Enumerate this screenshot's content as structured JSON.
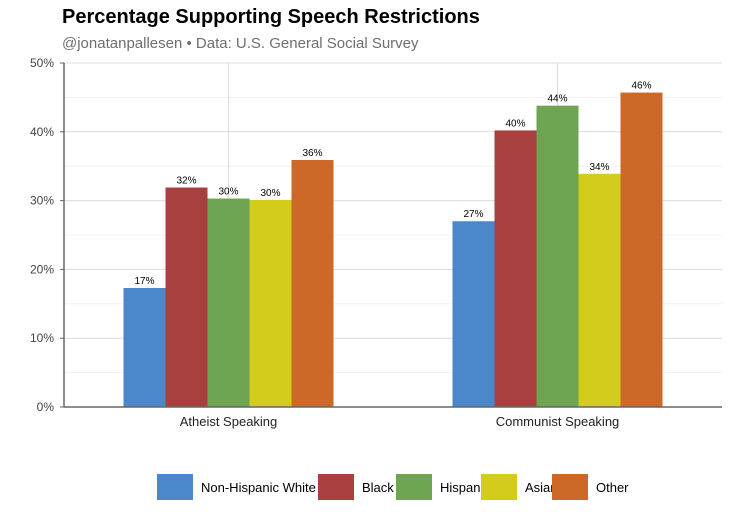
{
  "title": "Percentage Supporting Speech Restrictions",
  "subtitle": "@jonatanpallesen • Data: U.S. General Social Survey",
  "chart_data": {
    "type": "bar",
    "categories": [
      "Atheist Speaking",
      "Communist Speaking"
    ],
    "series": [
      {
        "name": "Non-Hispanic White",
        "color": "#4a88cb",
        "values": [
          17.3,
          27.0
        ],
        "labels": [
          "17%",
          "27%"
        ]
      },
      {
        "name": "Black",
        "color": "#a94040",
        "values": [
          31.9,
          40.2
        ],
        "labels": [
          "32%",
          "40%"
        ]
      },
      {
        "name": "Hispanic",
        "color": "#6ea452",
        "values": [
          30.3,
          43.8
        ],
        "labels": [
          "30%",
          "44%"
        ]
      },
      {
        "name": "Asian",
        "color": "#d3cc1a",
        "values": [
          30.1,
          33.9
        ],
        "labels": [
          "30%",
          "34%"
        ]
      },
      {
        "name": "Other",
        "color": "#cc6828",
        "values": [
          35.9,
          45.7
        ],
        "labels": [
          "36%",
          "46%"
        ]
      }
    ],
    "ylim": [
      0,
      50
    ],
    "yticks": [
      0,
      10,
      20,
      30,
      40,
      50
    ],
    "ytick_labels": [
      "0%",
      "10%",
      "20%",
      "30%",
      "40%",
      "50%"
    ],
    "grid": true,
    "legend_position": "bottom"
  }
}
